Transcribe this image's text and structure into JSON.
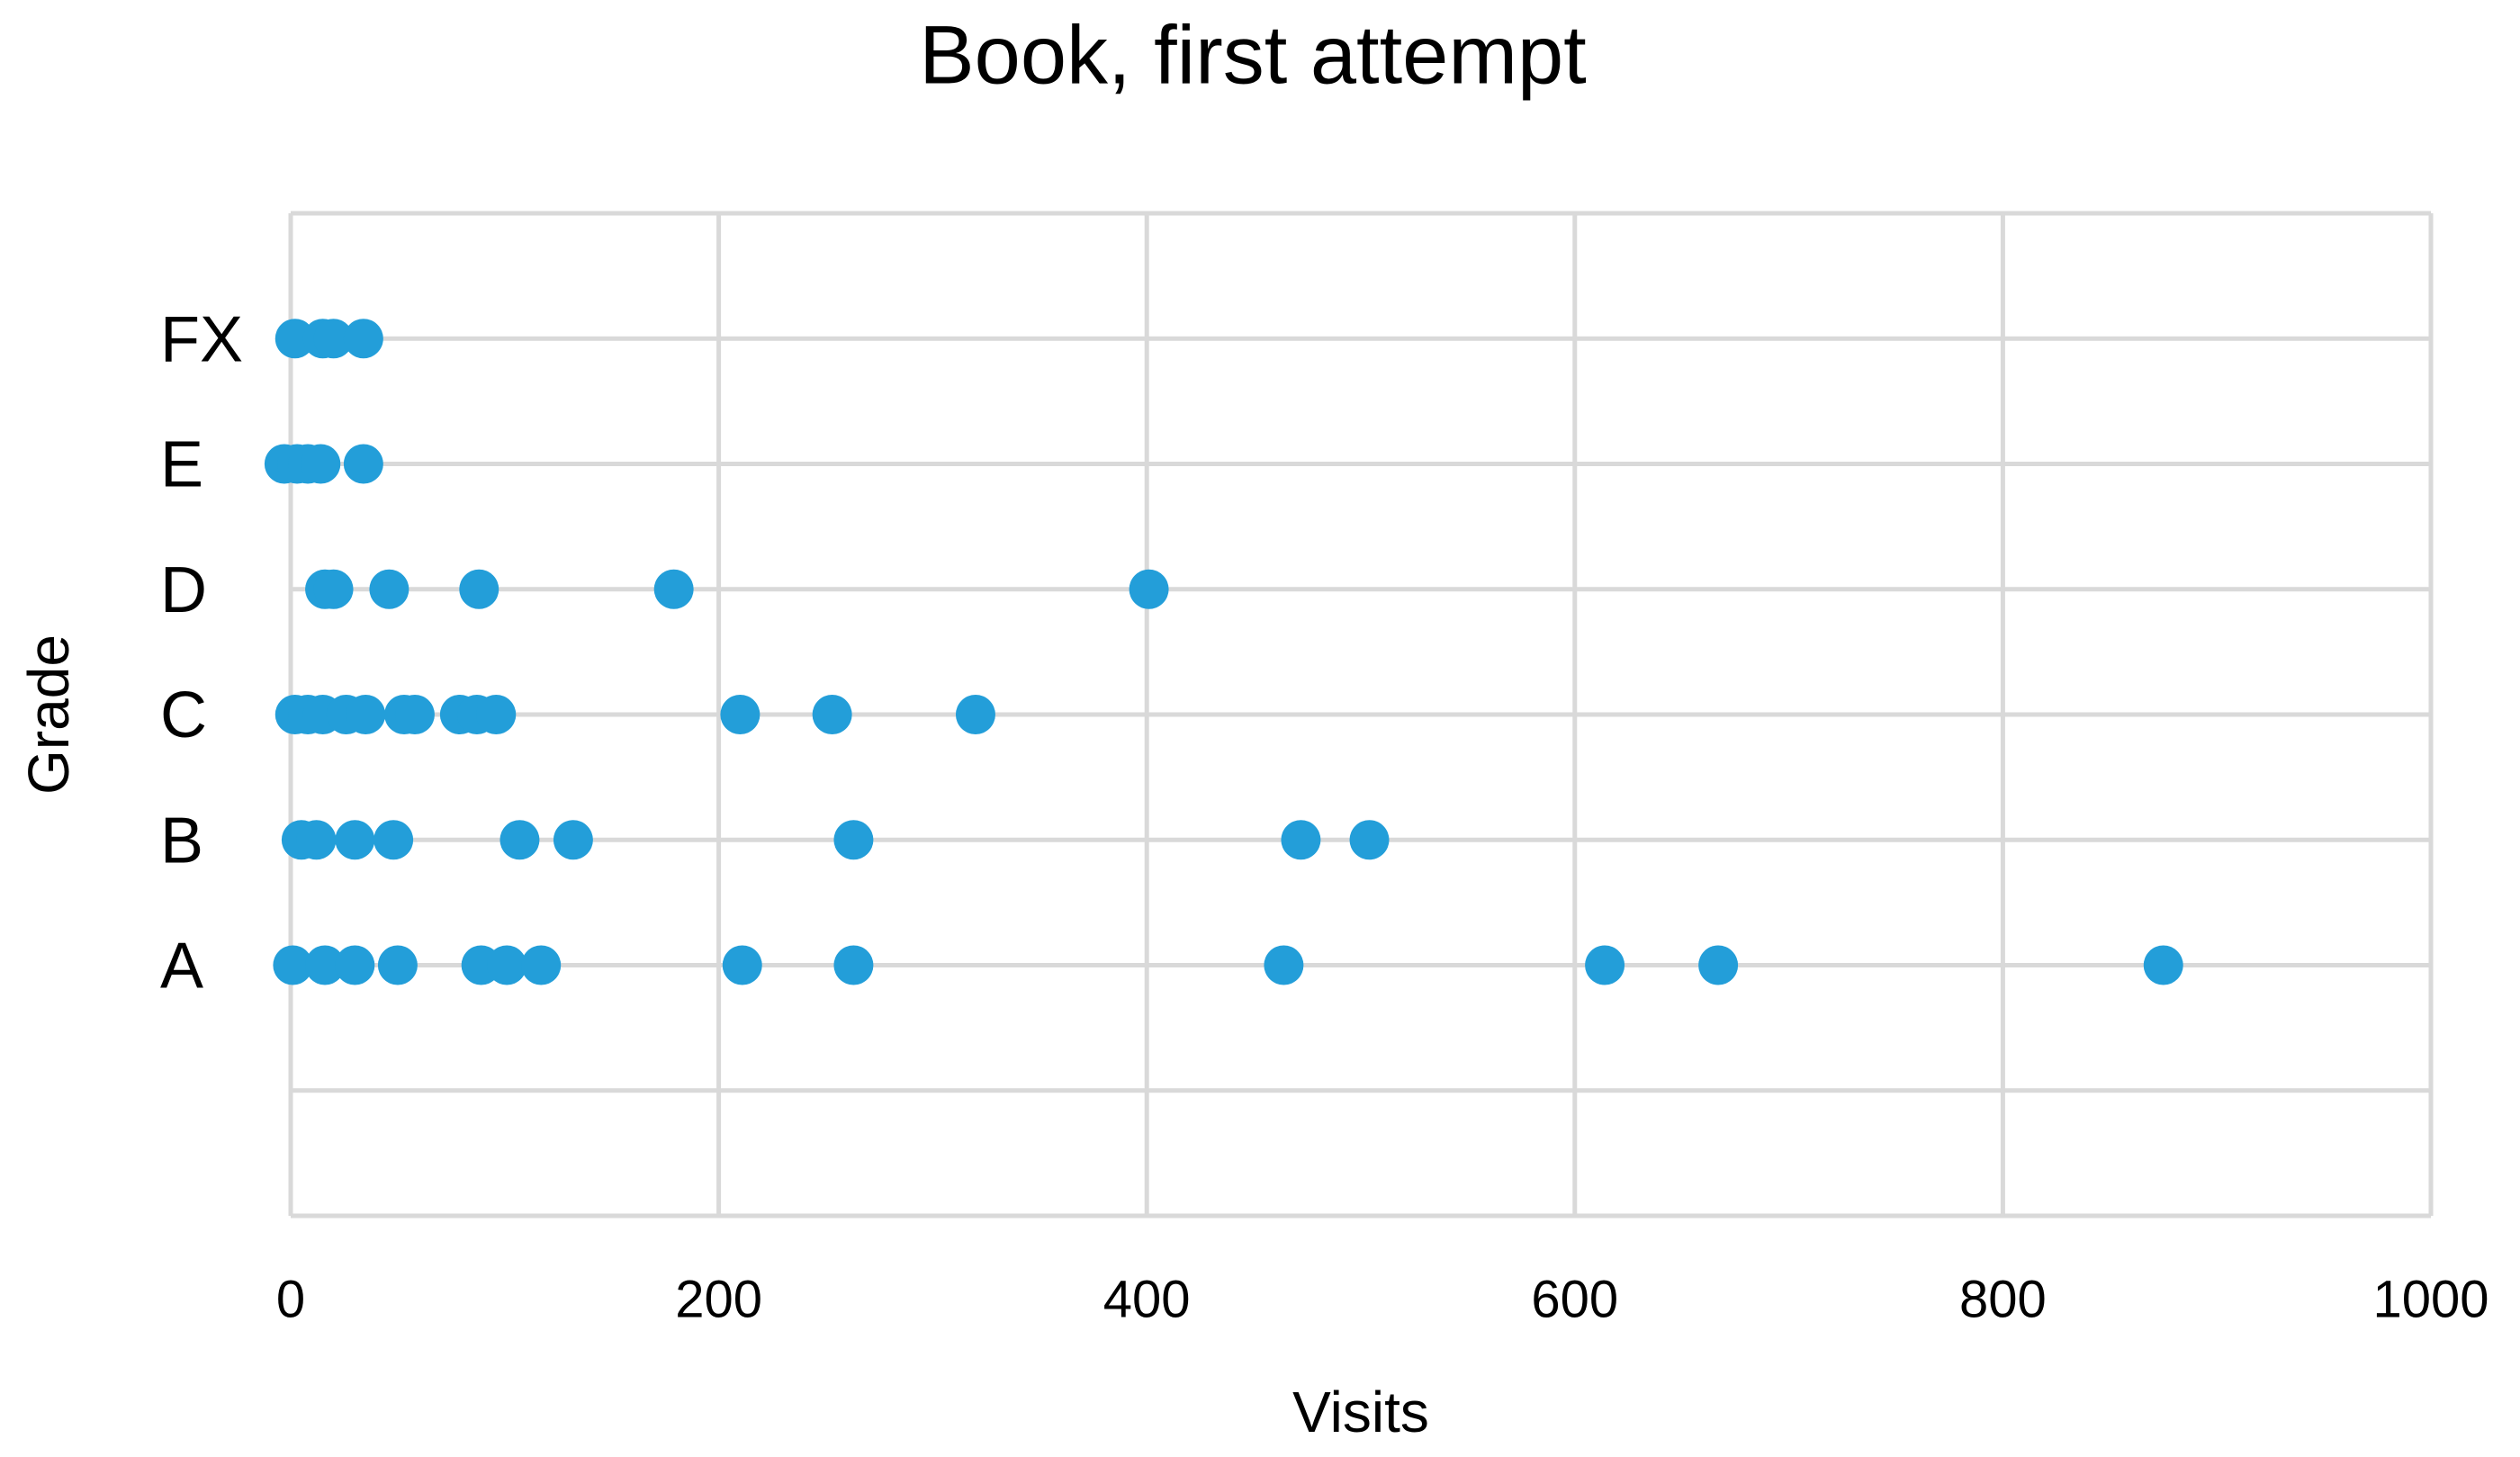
{
  "chart_data": {
    "type": "scatter",
    "title": "Book, first attempt",
    "x_label": "Visits",
    "y_label": "Grade",
    "series": [
      {
        "color": "#239ed9",
        "x": [
          2,
          15,
          20,
          34,
          -3,
          3,
          8,
          14,
          34,
          16,
          20,
          46,
          88,
          179,
          401,
          2,
          8,
          15,
          26,
          35,
          53,
          58,
          79,
          87,
          96,
          210,
          253,
          320,
          5,
          12,
          30,
          48,
          107,
          132,
          263,
          472,
          504,
          1,
          16,
          30,
          50,
          89,
          101,
          117,
          211,
          263,
          464,
          614,
          667,
          875
        ],
        "y": [
          7,
          7,
          7,
          7,
          6,
          6,
          6,
          6,
          6,
          5,
          5,
          5,
          5,
          5,
          5,
          4,
          4,
          4,
          4,
          4,
          4,
          4,
          4,
          4,
          4,
          4,
          4,
          4,
          3,
          3,
          3,
          3,
          3,
          3,
          3,
          3,
          3,
          2,
          2,
          2,
          2,
          2,
          2,
          2,
          2,
          2,
          2,
          2,
          2,
          2
        ]
      }
    ],
    "xlim": [
      0,
      1000
    ],
    "xticks": [
      0,
      200,
      400,
      600,
      800,
      1000
    ],
    "ylim": [
      0,
      8
    ],
    "yticks": [
      {
        "value": 0,
        "label": null
      },
      {
        "value": 1,
        "label": null
      },
      {
        "value": 2,
        "label": "A"
      },
      {
        "value": 3,
        "label": "B"
      },
      {
        "value": 4,
        "label": "C"
      },
      {
        "value": 5,
        "label": "D"
      },
      {
        "value": 6,
        "label": "E"
      },
      {
        "value": 7,
        "label": "FX"
      },
      {
        "value": 8,
        "label": null
      }
    ],
    "grid": true
  }
}
